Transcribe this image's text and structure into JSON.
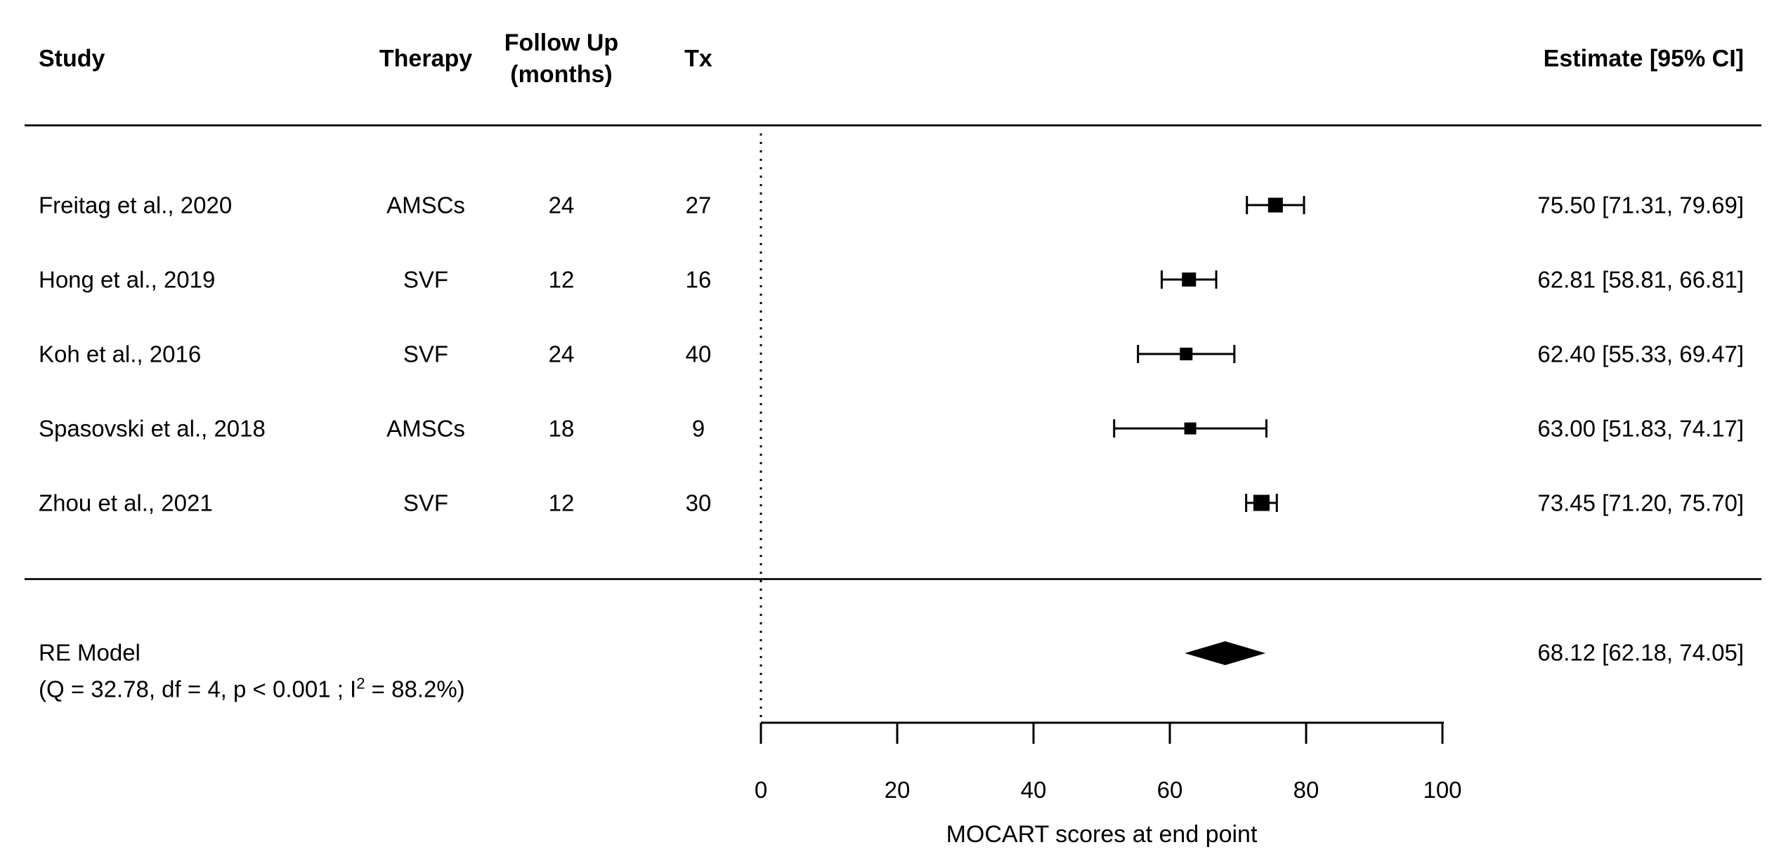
{
  "headers": {
    "study": "Study",
    "therapy": "Therapy",
    "follow_up": "Follow Up\n(months)",
    "tx": "Tx",
    "estimate": "Estimate [95% CI]"
  },
  "chart_data": {
    "type": "forest",
    "title": "",
    "xlabel": "MOCART scores at end point",
    "studies": [
      {
        "study": "Freitag et al., 2020",
        "therapy": "AMSCs",
        "follow_up": "24",
        "tx": "27",
        "estimate": 75.5,
        "ci_lower": 71.31,
        "ci_upper": 79.69,
        "estimate_label": "75.50 [71.31, 79.69]",
        "marker_size": 21
      },
      {
        "study": "Hong et al., 2019",
        "therapy": "SVF",
        "follow_up": "12",
        "tx": "16",
        "estimate": 62.81,
        "ci_lower": 58.81,
        "ci_upper": 66.81,
        "estimate_label": "62.81 [58.81, 66.81]",
        "marker_size": 20
      },
      {
        "study": "Koh et al., 2016",
        "therapy": "SVF",
        "follow_up": "24",
        "tx": "40",
        "estimate": 62.4,
        "ci_lower": 55.33,
        "ci_upper": 69.47,
        "estimate_label": "62.40 [55.33, 69.47]",
        "marker_size": 18
      },
      {
        "study": "Spasovski et al., 2018",
        "therapy": "AMSCs",
        "follow_up": "18",
        "tx": "9",
        "estimate": 63.0,
        "ci_lower": 51.83,
        "ci_upper": 74.17,
        "estimate_label": "63.00 [51.83, 74.17]",
        "marker_size": 17
      },
      {
        "study": "Zhou et al., 2021",
        "therapy": "SVF",
        "follow_up": "12",
        "tx": "30",
        "estimate": 73.45,
        "ci_lower": 71.2,
        "ci_upper": 75.7,
        "estimate_label": "73.45 [71.20, 75.70]",
        "marker_size": 23
      }
    ],
    "summary": {
      "label_line1": "RE Model",
      "stats_prefix": "(Q = 32.78, df = 4, p < 0.001 ; I",
      "stats_sup": "2",
      "stats_suffix": " = 88.2%)",
      "estimate": 68.12,
      "ci_lower": 62.18,
      "ci_upper": 74.05,
      "estimate_label": "68.12 [62.18, 74.05]"
    },
    "xaxis": {
      "range": [
        0,
        100
      ],
      "ticks": [
        0,
        20,
        40,
        60,
        80,
        100
      ],
      "tick_labels": [
        "0",
        "20",
        "40",
        "60",
        "80",
        "100"
      ],
      "ref_line": 0,
      "grid": false
    }
  },
  "colors": {
    "marker": "#000000",
    "text": "#000000",
    "rule": "#1a1a1a",
    "background": "#ffffff"
  }
}
